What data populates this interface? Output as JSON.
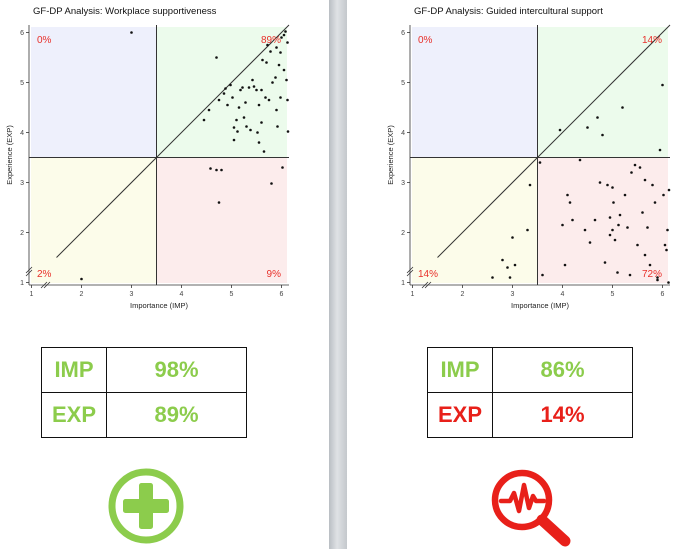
{
  "colors": {
    "green": "#8ccc4c",
    "red": "#e8201a",
    "pct": "#e8302a"
  },
  "panels": [
    {
      "title": "GF-DP Analysis: Workplace supportiveness",
      "quadrant_labels": {
        "top_left": "0%",
        "top_right": "89%",
        "bottom_left": "2%",
        "bottom_right": "9%"
      },
      "table": {
        "rows": [
          {
            "label": "IMP",
            "value": "98%",
            "status": "green"
          },
          {
            "label": "EXP",
            "value": "89%",
            "status": "green"
          }
        ]
      },
      "icon": "plus-circle-icon"
    },
    {
      "title": "GF-DP Analysis: Guided intercultural support",
      "quadrant_labels": {
        "top_left": "0%",
        "top_right": "14%",
        "bottom_left": "14%",
        "bottom_right": "72%"
      },
      "table": {
        "rows": [
          {
            "label": "IMP",
            "value": "86%",
            "status": "green"
          },
          {
            "label": "EXP",
            "value": "14%",
            "status": "red"
          }
        ]
      },
      "icon": "magnifier-pulse-icon"
    }
  ],
  "chart_data": [
    {
      "type": "scatter",
      "title": "GF-DP Analysis: Workplace supportiveness",
      "xlabel": "Importance (IMP)",
      "ylabel": "Experience (EXP)",
      "xlim": [
        0.95,
        6.15
      ],
      "ylim": [
        0.95,
        6.15
      ],
      "xticks": [
        1,
        2,
        3,
        4,
        5,
        6
      ],
      "yticks": [
        1,
        2,
        3,
        4,
        5,
        6
      ],
      "thresholds": {
        "x": 3.5,
        "y": 3.5
      },
      "diagonal": [
        [
          1.5,
          1.5
        ],
        [
          6.15,
          6.15
        ]
      ],
      "quadrant_fills": {
        "top_left": "#eef0fc",
        "top_right": "#ecfbec",
        "bottom_left": "#fcfcea",
        "bottom_right": "#fcecec"
      },
      "points": [
        [
          2.0,
          1.07
        ],
        [
          3.0,
          6.0
        ],
        [
          4.45,
          4.25
        ],
        [
          4.55,
          4.45
        ],
        [
          4.58,
          3.28
        ],
        [
          4.7,
          3.25
        ],
        [
          4.8,
          3.25
        ],
        [
          4.75,
          2.6
        ],
        [
          4.7,
          5.5
        ],
        [
          4.75,
          4.65
        ],
        [
          4.85,
          4.78
        ],
        [
          4.88,
          4.88
        ],
        [
          4.92,
          4.55
        ],
        [
          4.98,
          4.95
        ],
        [
          5.02,
          4.7
        ],
        [
          5.05,
          4.1
        ],
        [
          5.05,
          3.85
        ],
        [
          5.1,
          4.25
        ],
        [
          5.12,
          4.02
        ],
        [
          5.18,
          4.85
        ],
        [
          5.22,
          4.9
        ],
        [
          5.28,
          4.6
        ],
        [
          5.3,
          4.12
        ],
        [
          5.38,
          4.05
        ],
        [
          5.42,
          5.05
        ],
        [
          5.45,
          4.92
        ],
        [
          5.5,
          4.85
        ],
        [
          5.52,
          4.0
        ],
        [
          5.55,
          3.8
        ],
        [
          5.6,
          4.85
        ],
        [
          5.62,
          5.45
        ],
        [
          5.65,
          3.62
        ],
        [
          5.68,
          4.7
        ],
        [
          5.72,
          5.75
        ],
        [
          5.75,
          4.65
        ],
        [
          5.78,
          5.62
        ],
        [
          5.82,
          5.0
        ],
        [
          5.88,
          5.1
        ],
        [
          5.9,
          4.45
        ],
        [
          5.92,
          4.12
        ],
        [
          5.95,
          5.35
        ],
        [
          5.98,
          4.7
        ],
        [
          6.0,
          5.9
        ],
        [
          6.02,
          3.3
        ],
        [
          6.05,
          5.95
        ],
        [
          6.08,
          6.02
        ],
        [
          6.1,
          5.05
        ],
        [
          6.12,
          4.65
        ],
        [
          6.13,
          4.02
        ],
        [
          5.98,
          5.6
        ],
        [
          5.7,
          5.4
        ],
        [
          5.8,
          2.98
        ],
        [
          5.55,
          4.55
        ],
        [
          5.35,
          4.9
        ],
        [
          5.9,
          5.7
        ],
        [
          5.25,
          4.3
        ],
        [
          5.15,
          4.5
        ],
        [
          5.6,
          4.2
        ],
        [
          6.05,
          5.25
        ],
        [
          6.12,
          5.8
        ]
      ],
      "point_color": "#111111"
    },
    {
      "type": "scatter",
      "title": "GF-DP Analysis: Guided intercultural support",
      "xlabel": "Importance (IMP)",
      "ylabel": "Experience (EXP)",
      "xlim": [
        0.95,
        6.15
      ],
      "ylim": [
        0.95,
        6.15
      ],
      "xticks": [
        1,
        2,
        3,
        4,
        5,
        6
      ],
      "yticks": [
        1,
        2,
        3,
        4,
        5,
        6
      ],
      "thresholds": {
        "x": 3.5,
        "y": 3.5
      },
      "diagonal": [
        [
          1.5,
          1.5
        ],
        [
          6.15,
          6.15
        ]
      ],
      "quadrant_fills": {
        "top_left": "#eef0fc",
        "top_right": "#ecfbec",
        "bottom_left": "#fcfcea",
        "bottom_right": "#fcecec"
      },
      "points": [
        [
          2.6,
          1.1
        ],
        [
          2.8,
          1.45
        ],
        [
          2.9,
          1.3
        ],
        [
          2.95,
          1.1
        ],
        [
          3.0,
          1.9
        ],
        [
          3.05,
          1.35
        ],
        [
          3.3,
          2.05
        ],
        [
          3.35,
          2.95
        ],
        [
          3.55,
          3.4
        ],
        [
          3.6,
          1.15
        ],
        [
          3.95,
          4.05
        ],
        [
          4.0,
          2.15
        ],
        [
          4.05,
          1.35
        ],
        [
          4.1,
          2.75
        ],
        [
          4.15,
          2.6
        ],
        [
          4.2,
          2.25
        ],
        [
          4.35,
          3.45
        ],
        [
          4.45,
          2.05
        ],
        [
          4.5,
          4.1
        ],
        [
          4.55,
          1.8
        ],
        [
          4.65,
          2.25
        ],
        [
          4.7,
          4.3
        ],
        [
          4.75,
          3.0
        ],
        [
          4.8,
          3.95
        ],
        [
          4.85,
          1.4
        ],
        [
          4.9,
          2.95
        ],
        [
          4.95,
          2.3
        ],
        [
          5.0,
          2.05
        ],
        [
          5.02,
          2.6
        ],
        [
          5.05,
          1.85
        ],
        [
          5.1,
          1.2
        ],
        [
          5.12,
          2.15
        ],
        [
          5.15,
          2.35
        ],
        [
          5.2,
          4.5
        ],
        [
          5.25,
          2.75
        ],
        [
          5.3,
          2.1
        ],
        [
          5.35,
          1.15
        ],
        [
          5.38,
          3.2
        ],
        [
          5.45,
          3.35
        ],
        [
          5.5,
          1.75
        ],
        [
          5.55,
          3.3
        ],
        [
          5.6,
          2.4
        ],
        [
          5.65,
          3.05
        ],
        [
          5.7,
          2.1
        ],
        [
          5.75,
          1.35
        ],
        [
          5.8,
          2.95
        ],
        [
          5.85,
          2.6
        ],
        [
          5.9,
          1.1
        ],
        [
          5.95,
          3.65
        ],
        [
          6.0,
          4.95
        ],
        [
          6.02,
          2.75
        ],
        [
          6.05,
          1.75
        ],
        [
          6.08,
          1.65
        ],
        [
          6.1,
          2.05
        ],
        [
          6.12,
          1.0
        ],
        [
          6.13,
          2.85
        ],
        [
          5.0,
          2.9
        ],
        [
          5.65,
          1.55
        ],
        [
          4.95,
          1.95
        ],
        [
          5.9,
          1.05
        ]
      ],
      "point_color": "#111111"
    }
  ]
}
